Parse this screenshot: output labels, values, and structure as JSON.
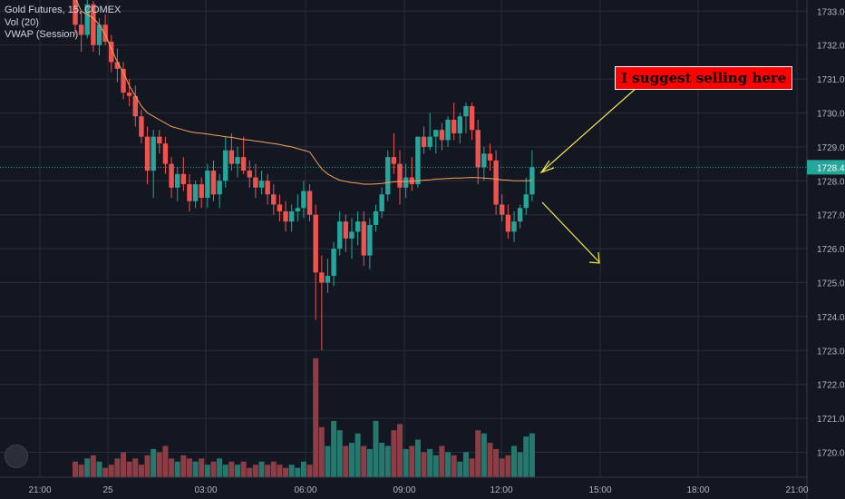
{
  "legend": {
    "symbol": "Gold Futures, 15, COMEX",
    "volume": "Vol (20)",
    "vwap": "VWAP (Session)"
  },
  "annotation": "I suggest selling here",
  "colors": {
    "up": "#26a69a",
    "down": "#ef5350",
    "vwap": "#f7a35c",
    "up_vol": "#26786f",
    "down_vol": "#8c3d45",
    "grid": "#2a2e39",
    "text": "#b2b5be",
    "arrow": "#f5e84e",
    "background": "#131722",
    "price_tag": "#26a69a"
  },
  "chart_data": {
    "type": "candlestick",
    "symbol": "Gold Futures, 15, COMEX",
    "interval": "15",
    "y_ticks": [
      1720.0,
      1721.0,
      1722.0,
      1723.0,
      1724.0,
      1725.0,
      1726.0,
      1727.0,
      1728.0,
      1729.0,
      1730.0,
      1731.0,
      1732.0,
      1733.0
    ],
    "x_ticks": [
      "21:00",
      "25",
      "03:00",
      "06:00",
      "09:00",
      "12:00",
      "15:00",
      "18:00",
      "21:00"
    ],
    "ylim": [
      1719.4,
      1733.5
    ],
    "last_price": 1728.4,
    "last_price_label": "1728.4",
    "candles": [
      [
        1733.4,
        1733.5,
        1732.3,
        1732.6
      ],
      [
        1732.6,
        1733.0,
        1731.8,
        1732.3
      ],
      [
        1732.3,
        1733.4,
        1732.2,
        1733.2
      ],
      [
        1733.2,
        1733.3,
        1731.8,
        1732.0
      ],
      [
        1732.0,
        1732.8,
        1731.7,
        1732.6
      ],
      [
        1732.6,
        1732.9,
        1732.0,
        1732.1
      ],
      [
        1732.1,
        1732.3,
        1731.2,
        1731.5
      ],
      [
        1731.5,
        1731.9,
        1730.9,
        1731.3
      ],
      [
        1731.3,
        1731.5,
        1730.4,
        1730.6
      ],
      [
        1730.6,
        1731.0,
        1730.2,
        1730.5
      ],
      [
        1730.5,
        1730.8,
        1729.6,
        1729.9
      ],
      [
        1729.9,
        1730.1,
        1729.1,
        1729.3
      ],
      [
        1729.3,
        1729.6,
        1727.9,
        1728.3
      ],
      [
        1728.3,
        1729.5,
        1727.5,
        1729.3
      ],
      [
        1729.3,
        1729.5,
        1728.8,
        1729.1
      ],
      [
        1729.1,
        1729.3,
        1728.2,
        1728.5
      ],
      [
        1728.5,
        1728.7,
        1727.5,
        1727.8
      ],
      [
        1727.8,
        1728.4,
        1727.4,
        1728.2
      ],
      [
        1728.2,
        1728.7,
        1727.7,
        1727.9
      ],
      [
        1727.9,
        1728.2,
        1727.1,
        1727.4
      ],
      [
        1727.4,
        1728.0,
        1727.2,
        1727.9
      ],
      [
        1727.9,
        1728.1,
        1727.2,
        1727.5
      ],
      [
        1727.5,
        1728.5,
        1727.2,
        1728.3
      ],
      [
        1728.3,
        1728.6,
        1727.4,
        1727.6
      ],
      [
        1727.6,
        1728.2,
        1727.2,
        1728.0
      ],
      [
        1728.0,
        1729.3,
        1727.8,
        1728.9
      ],
      [
        1728.9,
        1729.4,
        1728.3,
        1728.5
      ],
      [
        1728.5,
        1729.0,
        1728.1,
        1728.7
      ],
      [
        1728.7,
        1729.3,
        1728.2,
        1728.3
      ],
      [
        1728.3,
        1728.6,
        1727.8,
        1728.1
      ],
      [
        1728.1,
        1728.5,
        1727.5,
        1727.8
      ],
      [
        1727.8,
        1728.3,
        1727.6,
        1728.0
      ],
      [
        1728.0,
        1728.2,
        1727.3,
        1727.6
      ],
      [
        1727.6,
        1727.9,
        1727.0,
        1727.3
      ],
      [
        1727.3,
        1727.6,
        1726.8,
        1727.1
      ],
      [
        1727.1,
        1727.4,
        1726.5,
        1726.8
      ],
      [
        1726.8,
        1727.3,
        1726.5,
        1727.1
      ],
      [
        1727.1,
        1727.6,
        1726.8,
        1727.2
      ],
      [
        1727.2,
        1728.0,
        1726.9,
        1727.7
      ],
      [
        1727.7,
        1727.9,
        1726.8,
        1727.0
      ],
      [
        1727.0,
        1727.3,
        1723.9,
        1725.3
      ],
      [
        1725.3,
        1725.8,
        1723.0,
        1725.0
      ],
      [
        1725.0,
        1725.7,
        1724.7,
        1725.2
      ],
      [
        1725.2,
        1726.2,
        1724.9,
        1726.0
      ],
      [
        1726.0,
        1727.1,
        1725.8,
        1726.8
      ],
      [
        1726.8,
        1727.0,
        1725.9,
        1726.3
      ],
      [
        1726.3,
        1726.9,
        1725.7,
        1726.5
      ],
      [
        1726.5,
        1727.1,
        1726.1,
        1726.8
      ],
      [
        1726.8,
        1727.1,
        1725.5,
        1725.8
      ],
      [
        1725.8,
        1726.9,
        1725.4,
        1726.7
      ],
      [
        1726.7,
        1727.3,
        1726.5,
        1727.1
      ],
      [
        1727.1,
        1727.8,
        1726.9,
        1727.6
      ],
      [
        1727.6,
        1728.9,
        1727.4,
        1728.7
      ],
      [
        1728.7,
        1729.4,
        1728.2,
        1728.5
      ],
      [
        1728.5,
        1728.9,
        1727.3,
        1727.8
      ],
      [
        1727.8,
        1728.5,
        1727.5,
        1728.1
      ],
      [
        1728.1,
        1728.7,
        1727.7,
        1727.9
      ],
      [
        1727.9,
        1729.3,
        1727.8,
        1729.3
      ],
      [
        1729.3,
        1729.6,
        1728.8,
        1729.0
      ],
      [
        1729.0,
        1730.0,
        1728.9,
        1729.3
      ],
      [
        1729.3,
        1729.4,
        1728.8,
        1729.5
      ],
      [
        1729.5,
        1729.7,
        1728.9,
        1729.2
      ],
      [
        1729.2,
        1729.9,
        1729.0,
        1729.8
      ],
      [
        1729.8,
        1730.3,
        1729.2,
        1729.4
      ],
      [
        1729.4,
        1730.0,
        1729.1,
        1729.9
      ],
      [
        1729.9,
        1730.3,
        1729.4,
        1730.2
      ],
      [
        1730.2,
        1730.3,
        1729.2,
        1729.5
      ],
      [
        1729.5,
        1729.8,
        1727.9,
        1728.4
      ],
      [
        1728.4,
        1729.0,
        1728.0,
        1728.8
      ],
      [
        1728.8,
        1729.1,
        1728.3,
        1728.6
      ],
      [
        1728.6,
        1728.9,
        1727.0,
        1727.3
      ],
      [
        1727.3,
        1727.6,
        1726.8,
        1727.0
      ],
      [
        1727.0,
        1727.3,
        1726.3,
        1726.5
      ],
      [
        1726.5,
        1727.1,
        1726.2,
        1726.8
      ],
      [
        1726.8,
        1727.3,
        1726.6,
        1727.2
      ],
      [
        1727.2,
        1728.1,
        1727.0,
        1727.6
      ],
      [
        1727.6,
        1728.9,
        1727.4,
        1728.4
      ]
    ],
    "volume": [
      5,
      4,
      6,
      7,
      5,
      3,
      4,
      6,
      8,
      5,
      6,
      4,
      7,
      9,
      8,
      10,
      6,
      5,
      7,
      6,
      5,
      6,
      4,
      5,
      6,
      4,
      5,
      4,
      5,
      3,
      4,
      5,
      4,
      5,
      4,
      3,
      4,
      3,
      5,
      4,
      38,
      16,
      10,
      18,
      15,
      10,
      11,
      14,
      10,
      9,
      18,
      11,
      10,
      15,
      17,
      9,
      10,
      12,
      8,
      9,
      7,
      10,
      8,
      7,
      5,
      8,
      6,
      15,
      14,
      11,
      9,
      6,
      7,
      10,
      8,
      13,
      14
    ],
    "vwap": [
      1733.4,
      1733.0,
      1732.9,
      1732.8,
      1732.6,
      1732.3,
      1731.9,
      1731.5,
      1731.2,
      1730.8,
      1730.5,
      1730.2,
      1730.0,
      1729.9,
      1729.8,
      1729.7,
      1729.6,
      1729.55,
      1729.5,
      1729.45,
      1729.42,
      1729.4,
      1729.38,
      1729.35,
      1729.33,
      1729.3,
      1729.28,
      1729.25,
      1729.22,
      1729.2,
      1729.17,
      1729.15,
      1729.12,
      1729.1,
      1729.07,
      1729.03,
      1729.0,
      1728.95,
      1728.9,
      1728.85,
      1728.6,
      1728.35,
      1728.2,
      1728.1,
      1728.02,
      1727.98,
      1727.95,
      1727.93,
      1727.9,
      1727.9,
      1727.91,
      1727.92,
      1727.95,
      1727.97,
      1727.98,
      1727.98,
      1727.99,
      1728.0,
      1728.02,
      1728.03,
      1728.05,
      1728.06,
      1728.07,
      1728.08,
      1728.08,
      1728.09,
      1728.1,
      1728.09,
      1728.08,
      1728.07,
      1728.05,
      1728.03,
      1728.02,
      1728.0,
      1728.0,
      1728.0,
      1728.01
    ]
  }
}
